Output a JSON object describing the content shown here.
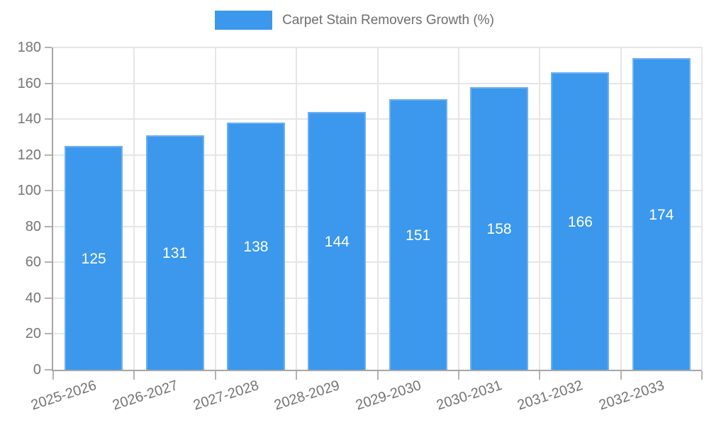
{
  "legend": {
    "label": "Carpet Stain Removers Growth (%)"
  },
  "chart_data": {
    "type": "bar",
    "title": "Carpet Stain Removers Growth (%)",
    "categories": [
      "2025-2026",
      "2026-2027",
      "2027-2028",
      "2028-2029",
      "2029-2030",
      "2030-2031",
      "2031-2032",
      "2032-2033"
    ],
    "values": [
      125,
      131,
      138,
      144,
      151,
      158,
      166,
      174
    ],
    "xlabel": "",
    "ylabel": "",
    "ylim": [
      0,
      180
    ],
    "yticks": [
      0,
      20,
      40,
      60,
      80,
      100,
      120,
      140,
      160,
      180
    ],
    "grid": true,
    "legend_position": "top",
    "value_labels_position": "inside-center",
    "colors": {
      "bar_fill": "#3b98ed",
      "bar_border": "#6fb0f1",
      "value_label": "#ffffff",
      "axis_line": "#a6a6a6",
      "grid_line": "#e6e6e6",
      "tick_mark": "#b3b3b3",
      "tick_label": "#757575",
      "legend_text": "#6e6e6e"
    }
  }
}
